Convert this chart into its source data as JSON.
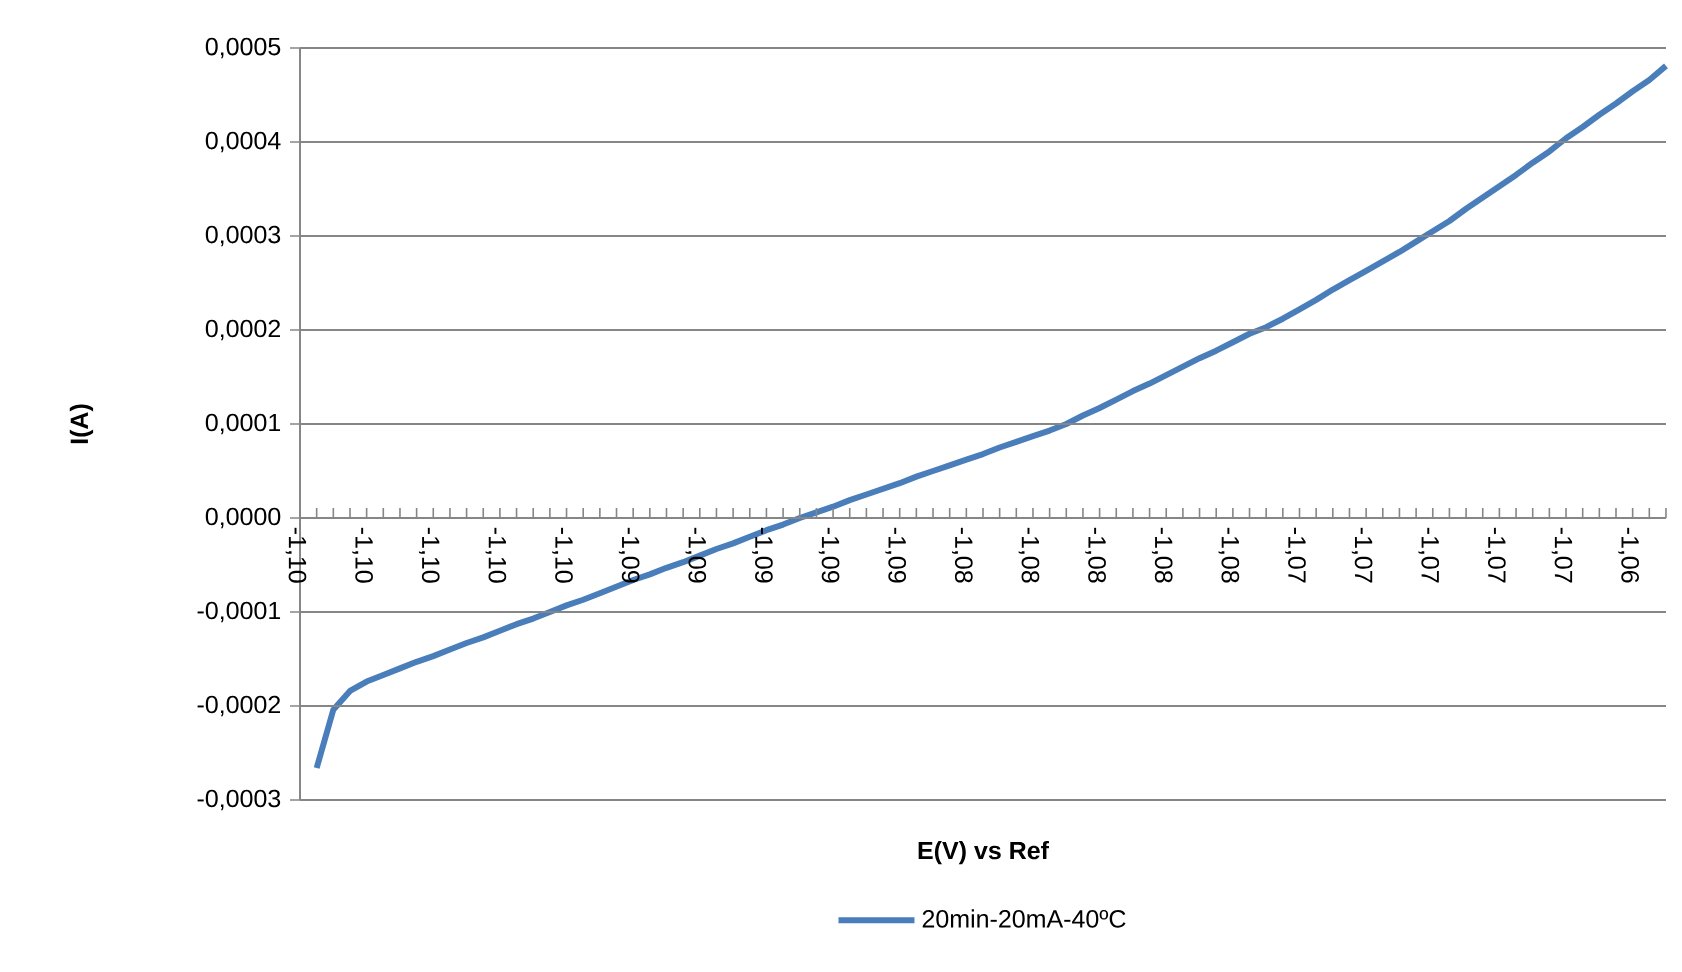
{
  "chart_data": {
    "type": "line",
    "xlabel": "E(V) vs Ref",
    "ylabel": "I(A)",
    "categories": [
      "-1,10",
      null,
      null,
      null,
      "-1,10",
      null,
      null,
      null,
      "-1,10",
      null,
      null,
      null,
      "-1,10",
      null,
      null,
      null,
      "-1,10",
      null,
      null,
      null,
      "-1,09",
      null,
      null,
      null,
      "-1,09",
      null,
      null,
      null,
      "-1,09",
      null,
      null,
      null,
      "-1,09",
      null,
      null,
      null,
      "-1,09",
      null,
      null,
      null,
      "-1,08",
      null,
      null,
      null,
      "-1,08",
      null,
      null,
      null,
      "-1,08",
      null,
      null,
      null,
      "-1,08",
      null,
      null,
      null,
      "-1,08",
      null,
      null,
      null,
      "-1,07",
      null,
      null,
      null,
      "-1,07",
      null,
      null,
      null,
      "-1,07",
      null,
      null,
      null,
      "-1,07",
      null,
      null,
      null,
      "-1,07",
      null,
      null,
      null,
      "-1,06",
      null,
      null
    ],
    "series": [
      {
        "name": "20min-20mA-40ºC",
        "color": "#4a7ebb",
        "values": [
          null,
          -0.000266,
          -0.000204,
          -0.000184,
          -0.000174,
          -0.000167,
          -0.00016,
          -0.000153,
          -0.000147,
          -0.00014,
          -0.000133,
          -0.000127,
          -0.00012,
          -0.000113,
          -0.000107,
          -0.0001,
          -9.3e-05,
          -8.7e-05,
          -8e-05,
          -7.3e-05,
          -6.6e-05,
          -6e-05,
          -5.3e-05,
          -4.7e-05,
          -4e-05,
          -3.3e-05,
          -2.7e-05,
          -2e-05,
          -1.3e-05,
          -7e-06,
          0.0,
          6e-06,
          1.2e-05,
          1.9e-05,
          2.5e-05,
          3.1e-05,
          3.7e-05,
          4.4e-05,
          5e-05,
          5.6e-05,
          6.2e-05,
          6.8e-05,
          7.5e-05,
          8.1e-05,
          8.7e-05,
          9.3e-05,
          0.0001,
          0.000109,
          0.000117,
          0.000126,
          0.000135,
          0.000143,
          0.000152,
          0.000161,
          0.00017,
          0.000178,
          0.000187,
          0.000196,
          0.000203,
          0.000212,
          0.000222,
          0.000232,
          0.000243,
          0.000253,
          0.000263,
          0.000273,
          0.000283,
          0.000294,
          0.000305,
          0.000316,
          0.000329,
          0.000341,
          0.000353,
          0.000365,
          0.000378,
          0.00039,
          0.000404,
          0.000416,
          0.000429,
          0.000441,
          0.000454,
          0.000466,
          0.000481
        ]
      }
    ],
    "ylim": [
      -0.0003,
      0.0005
    ],
    "yticks": [
      {
        "value": -0.0003,
        "label": "-0,0003"
      },
      {
        "value": -0.0002,
        "label": "-0,0002"
      },
      {
        "value": -0.0001,
        "label": "-0,0001"
      },
      {
        "value": 0,
        "label": "0,0000"
      },
      {
        "value": 0.0001,
        "label": "0,0001"
      },
      {
        "value": 0.0002,
        "label": "0,0002"
      },
      {
        "value": 0.0003,
        "label": "0,0003"
      },
      {
        "value": 0.0004,
        "label": "0,0004"
      },
      {
        "value": 0.0005,
        "label": "0,0005"
      }
    ],
    "grid": "y",
    "legend": "bottom"
  }
}
